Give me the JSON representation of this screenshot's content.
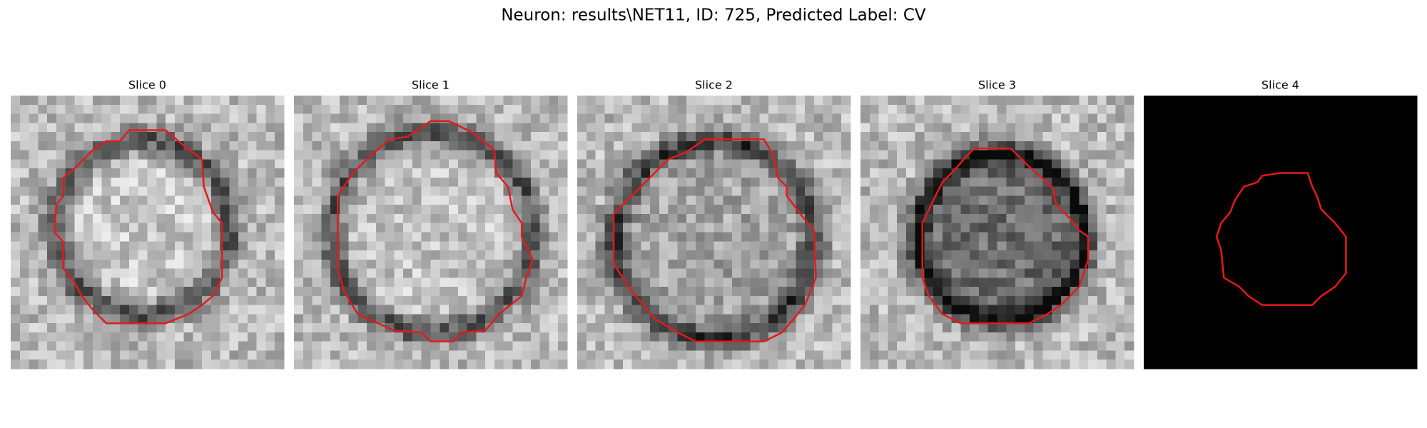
{
  "title": "Neuron: results\\NET11, ID: 725, Predicted Label: CV",
  "panels": [
    {
      "title": "Slice 0"
    },
    {
      "title": "Slice 1"
    },
    {
      "title": "Slice 2"
    },
    {
      "title": "Slice 3"
    },
    {
      "title": "Slice 4"
    }
  ]
}
